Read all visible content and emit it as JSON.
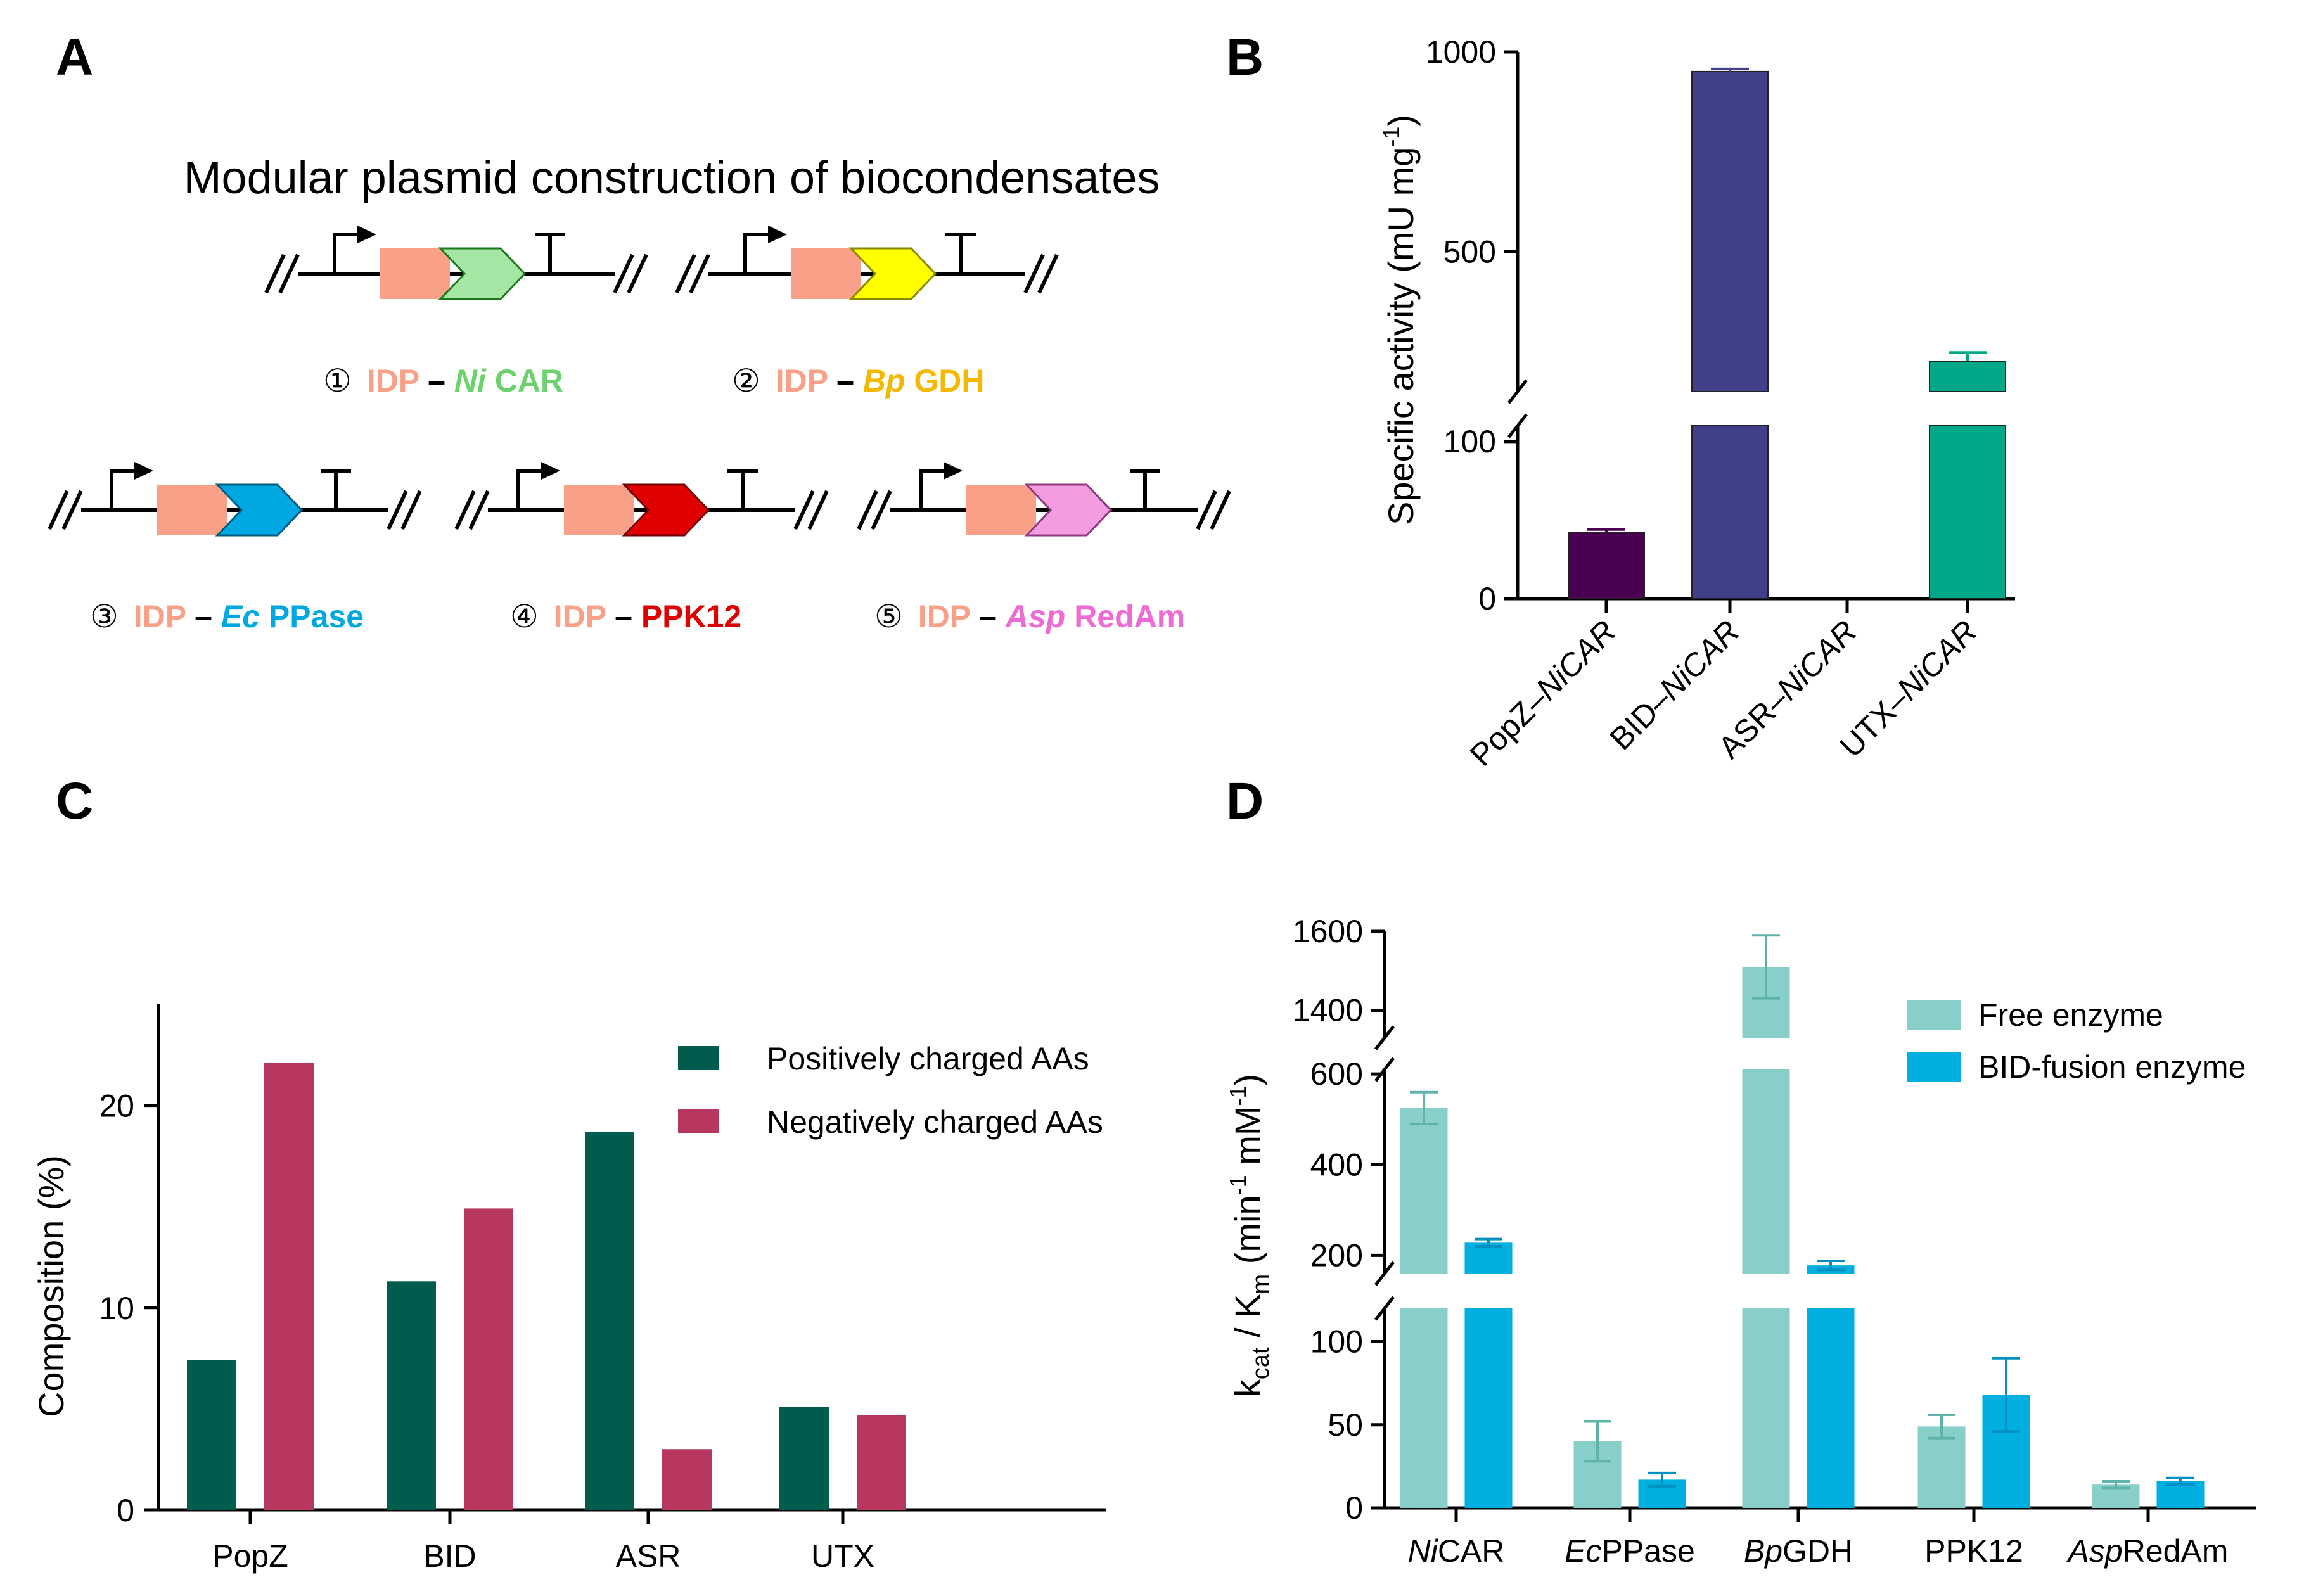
{
  "colors": {
    "idp": "#f9a088",
    "nicar": "#a5e6a5",
    "bpgdh": "#ffff00",
    "ecppase": "#00a8e1",
    "ppk12": "#e00000",
    "asp": "#f49ce0",
    "panelB": [
      "#4a0050",
      "#3f3f8a",
      "#3f3f8a",
      "#00a888"
    ],
    "positive": "#005c4c",
    "negative": "#b8375f",
    "free": "#87cfc8",
    "bid": "#00afe0"
  },
  "panelA": {
    "label": "A",
    "title": "Modular plasmid construction of biocondensates",
    "constructs": [
      {
        "num": "①",
        "prefix": "IDP",
        "dash": "–",
        "italic": "Ni",
        "rest": "CAR",
        "color": "#6dd16d"
      },
      {
        "num": "②",
        "prefix": "IDP",
        "dash": "–",
        "italic": "Bp",
        "rest": "GDH",
        "color": "#f5b800"
      },
      {
        "num": "③",
        "prefix": "IDP",
        "dash": "–",
        "italic": "Ec",
        "rest": "PPase",
        "color": "#00a8e1"
      },
      {
        "num": "④",
        "prefix": "IDP",
        "dash": "–",
        "italic": "",
        "rest": "PPK12",
        "color": "#e00000"
      },
      {
        "num": "⑤",
        "prefix": "IDP",
        "dash": "–",
        "italic": "Asp",
        "rest": "RedAm",
        "color": "#f06ad6"
      }
    ]
  },
  "chart_data": [
    {
      "panel": "B",
      "type": "bar",
      "ylabel_main": "Specific activity (mU mg",
      "ylabel_sup": "-1",
      "ylabel_end": ")",
      "categories": [
        "PopZ–NiCAR",
        "BID–NiCAR",
        "ASR–NiCAR",
        "UTX–NiCAR"
      ],
      "category_parts": [
        {
          "plain": "PopZ–",
          "italic": "Ni",
          "tail": "CAR"
        },
        {
          "plain": "BID–",
          "italic": "Ni",
          "tail": "CAR"
        },
        {
          "plain": "ASR–",
          "italic": "Ni",
          "tail": "CAR"
        },
        {
          "plain": "UTX–",
          "italic": "Ni",
          "tail": "CAR"
        }
      ],
      "values": [
        42,
        951,
        0,
        226
      ],
      "errors": [
        2,
        3,
        0,
        22
      ],
      "yticks": [
        "0",
        "100",
        "500",
        "1000"
      ],
      "segments": [
        {
          "ylim": [
            0,
            110
          ]
        },
        {
          "ylim": [
            150,
            1000
          ]
        }
      ]
    },
    {
      "panel": "C",
      "type": "bar",
      "ylabel": "Composition (%)",
      "categories": [
        "PopZ",
        "BID",
        "ASR",
        "UTX"
      ],
      "series": [
        {
          "name": "Positively charged AAs",
          "values": [
            7.4,
            11.3,
            18.7,
            5.1
          ]
        },
        {
          "name": "Negatively charged AAs",
          "values": [
            22.1,
            14.9,
            3.0,
            4.7
          ]
        }
      ],
      "yticks": [
        "0",
        "10",
        "20"
      ],
      "ylim": [
        0,
        25
      ]
    },
    {
      "panel": "D",
      "type": "bar",
      "ylabel_k": "k",
      "ylabel_cat": "cat",
      "ylabel_mid": " / K",
      "ylabel_m": "m",
      "ylabel_unit": " (min",
      "ylabel_sup1": "-1",
      "ylabel_unit2": " mM",
      "ylabel_sup2": "-1",
      "ylabel_close": ")",
      "categories": [
        "NiCAR",
        "EcPPase",
        "BpGDH",
        "PPK12",
        "AspRedAm"
      ],
      "category_parts": [
        {
          "italic": "Ni",
          "tail": "CAR"
        },
        {
          "italic": "Ec",
          "tail": "PPase"
        },
        {
          "italic": "Bp",
          "tail": "GDH"
        },
        {
          "italic": "",
          "tail": "PPK12"
        },
        {
          "italic": "Asp",
          "tail": "RedAm"
        }
      ],
      "series": [
        {
          "name": "Free enzyme",
          "values": [
            525,
            40,
            1510,
            49,
            14
          ],
          "errors": [
            35,
            12,
            80,
            7,
            2
          ]
        },
        {
          "name": "BID-fusion enzyme",
          "values": [
            228,
            17,
            178,
            68,
            16
          ],
          "errors": [
            8,
            4,
            10,
            22,
            2
          ]
        }
      ],
      "yticks_low": [
        "0",
        "50",
        "100"
      ],
      "yticks_mid": [
        "200",
        "400",
        "600"
      ],
      "yticks_high": [
        "1400",
        "1600"
      ],
      "segments": [
        {
          "ylim": [
            0,
            120
          ]
        },
        {
          "ylim": [
            160,
            610
          ]
        },
        {
          "ylim": [
            1330,
            1600
          ]
        }
      ]
    }
  ],
  "labels": {
    "B": "B",
    "C": "C",
    "D": "D"
  }
}
